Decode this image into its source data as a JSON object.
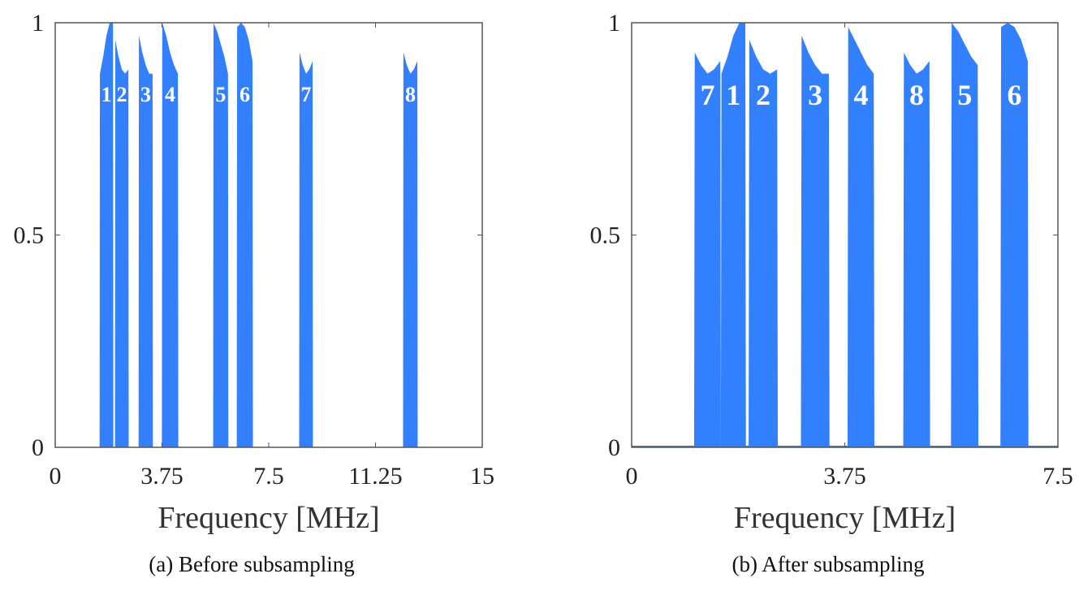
{
  "chart_data": [
    {
      "type": "area",
      "caption": "(a) Before subsampling",
      "xlabel": "Frequency [MHz]",
      "ylabel": "",
      "xlim": [
        0,
        15
      ],
      "ylim": [
        0,
        1
      ],
      "xticks": [
        "0",
        "3.75",
        "7.5",
        "11.25",
        "15"
      ],
      "xtick_values": [
        0,
        3.75,
        7.5,
        11.25,
        15
      ],
      "yticks": [
        "0",
        "0.5",
        "1"
      ],
      "ytick_values": [
        0,
        0.5,
        1
      ],
      "color": "#3380ff",
      "zero_baseline": false,
      "bands": [
        {
          "label": "1",
          "f_start": 1.57,
          "f_end": 2.03,
          "profile": [
            0.88,
            0.92,
            0.97,
            1.0,
            1.0
          ]
        },
        {
          "label": "2",
          "f_start": 2.11,
          "f_end": 2.57,
          "profile": [
            0.96,
            0.92,
            0.89,
            0.88,
            0.89
          ]
        },
        {
          "label": "3",
          "f_start": 2.94,
          "f_end": 3.42,
          "profile": [
            0.97,
            0.93,
            0.9,
            0.88,
            0.88
          ]
        },
        {
          "label": "4",
          "f_start": 3.76,
          "f_end": 4.31,
          "profile": [
            1.0,
            0.97,
            0.93,
            0.9,
            0.88
          ]
        },
        {
          "label": "5",
          "f_start": 5.56,
          "f_end": 6.07,
          "profile": [
            1.0,
            0.98,
            0.95,
            0.92,
            0.88
          ]
        },
        {
          "label": "6",
          "f_start": 6.39,
          "f_end": 6.93,
          "profile": [
            0.99,
            1.0,
            0.99,
            0.96,
            0.91
          ]
        },
        {
          "label": "7",
          "f_start": 8.58,
          "f_end": 9.04,
          "profile": [
            0.93,
            0.9,
            0.88,
            0.89,
            0.91
          ]
        },
        {
          "label": "8",
          "f_start": 12.23,
          "f_end": 12.72,
          "profile": [
            0.93,
            0.9,
            0.88,
            0.89,
            0.91
          ]
        }
      ]
    },
    {
      "type": "area",
      "caption": "(b) After subsampling",
      "xlabel": "Frequency [MHz]",
      "ylabel": "",
      "xlim": [
        0,
        7.5
      ],
      "ylim": [
        0,
        1
      ],
      "xticks": [
        "0",
        "3.75",
        "7.5"
      ],
      "xtick_values": [
        0,
        3.75,
        7.5
      ],
      "yticks": [
        "0",
        "0.5",
        "1"
      ],
      "ytick_values": [
        0,
        0.5,
        1
      ],
      "color": "#3380ff",
      "zero_baseline": true,
      "bands": [
        {
          "label": "7",
          "f_start": 1.11,
          "f_end": 1.56,
          "profile": [
            0.93,
            0.9,
            0.88,
            0.89,
            0.91
          ]
        },
        {
          "label": "1",
          "f_start": 1.58,
          "f_end": 2.0,
          "profile": [
            0.88,
            0.92,
            0.97,
            1.0,
            1.0
          ]
        },
        {
          "label": "2",
          "f_start": 2.07,
          "f_end": 2.56,
          "profile": [
            0.96,
            0.92,
            0.89,
            0.88,
            0.89
          ]
        },
        {
          "label": "3",
          "f_start": 2.99,
          "f_end": 3.47,
          "profile": [
            0.97,
            0.93,
            0.9,
            0.88,
            0.88
          ]
        },
        {
          "label": "4",
          "f_start": 3.81,
          "f_end": 4.26,
          "profile": [
            0.99,
            0.96,
            0.93,
            0.9,
            0.88
          ]
        },
        {
          "label": "8",
          "f_start": 4.79,
          "f_end": 5.24,
          "profile": [
            0.93,
            0.9,
            0.88,
            0.89,
            0.91
          ]
        },
        {
          "label": "5",
          "f_start": 5.63,
          "f_end": 6.09,
          "profile": [
            1.0,
            0.98,
            0.95,
            0.92,
            0.9
          ]
        },
        {
          "label": "6",
          "f_start": 6.5,
          "f_end": 6.97,
          "profile": [
            0.99,
            1.0,
            0.99,
            0.96,
            0.91
          ]
        }
      ]
    }
  ]
}
